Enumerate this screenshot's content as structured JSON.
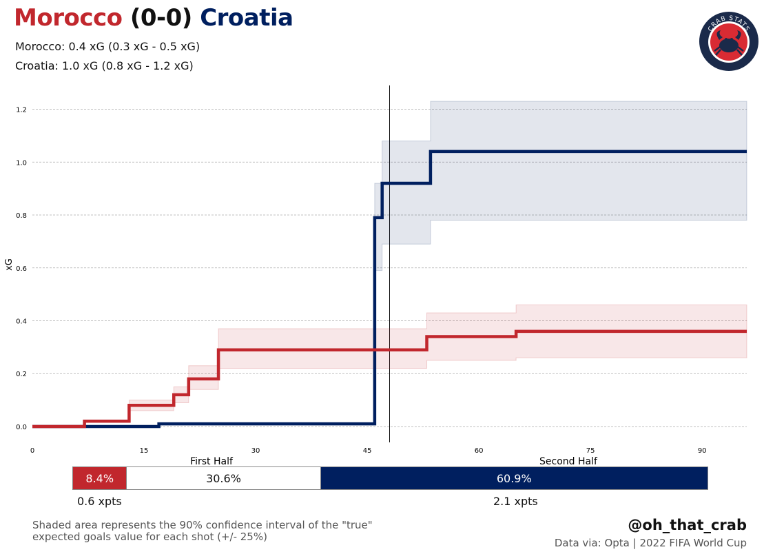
{
  "header": {
    "team_home": "Morocco",
    "score": "(0-0)",
    "team_away": "Croatia",
    "line1": "Morocco: 0.4 xG (0.3 xG - 0.5 xG)",
    "line2": "Croatia: 1.0 xG (0.8 xG - 1.2 xG)",
    "logo_text": "CRAB STATS"
  },
  "colors": {
    "morocco": "#c1272d",
    "croatia": "#001f5f",
    "draw": "#ffffff"
  },
  "chart_data": {
    "type": "line",
    "ylabel": "xG",
    "xlim": [
      0,
      96
    ],
    "ylim": [
      -0.06,
      1.29
    ],
    "xticks": [
      0,
      15,
      30,
      45,
      60,
      75,
      90
    ],
    "yticks": [
      "0.0",
      "0.2",
      "0.4",
      "0.6",
      "0.8",
      "1.0",
      "1.2"
    ],
    "half_labels": [
      "First Half",
      "Second Half"
    ],
    "halftime_x": 48,
    "series": [
      {
        "name": "Croatia",
        "x": [
          0,
          17,
          46,
          47,
          53.5,
          96
        ],
        "y": [
          0,
          0.01,
          0.79,
          0.92,
          1.04,
          1.04
        ],
        "ci_low": [
          0,
          0.01,
          0.59,
          0.69,
          0.78,
          0.78
        ],
        "ci_high": [
          0,
          0.01,
          0.92,
          1.08,
          1.23,
          1.23
        ]
      },
      {
        "name": "Morocco",
        "x": [
          0,
          7,
          13,
          19,
          21,
          25,
          53,
          65,
          96
        ],
        "y": [
          0,
          0.02,
          0.08,
          0.12,
          0.18,
          0.29,
          0.34,
          0.36,
          0.36
        ],
        "ci_low": [
          0,
          0.02,
          0.06,
          0.09,
          0.14,
          0.22,
          0.25,
          0.26,
          0.26
        ],
        "ci_high": [
          0,
          0.02,
          0.1,
          0.15,
          0.23,
          0.37,
          0.43,
          0.46,
          0.46
        ]
      }
    ]
  },
  "probabilities": {
    "morocco_pct": "8.4%",
    "draw_pct": "30.6%",
    "croatia_pct": "60.9%",
    "morocco_value": 8.4,
    "draw_value": 30.6,
    "croatia_value": 60.9,
    "morocco_xpts": "0.6 xpts",
    "croatia_xpts": "2.1 xpts"
  },
  "footer": {
    "note_line1": "Shaded area represents the 90% confidence interval of the \"true\"",
    "note_line2": "expected goals value for each shot (+/- 25%)",
    "handle": "@oh_that_crab",
    "source": "Data via: Opta | 2022 FIFA World Cup"
  }
}
